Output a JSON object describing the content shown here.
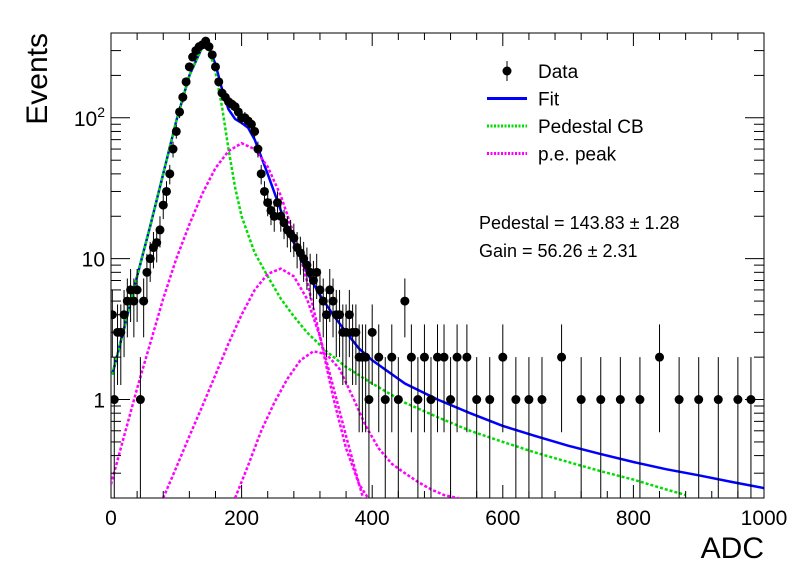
{
  "chart_data": {
    "type": "scatter",
    "xlabel": "ADC",
    "ylabel": "Events",
    "xlim": [
      0,
      1000
    ],
    "ylim": [
      0.2,
      400
    ],
    "yscale": "log",
    "x_ticks": [
      0,
      200,
      400,
      600,
      800,
      1000
    ],
    "x_tick_labels": [
      "0",
      "200",
      "400",
      "600",
      "800",
      "1000"
    ],
    "y_ticks": [
      1,
      10,
      100
    ],
    "y_tick_labels": [
      "1",
      "10",
      "10^2"
    ],
    "legend": {
      "position": "top-right",
      "entries": [
        {
          "label": "Data",
          "style": "marker",
          "color": "#000000"
        },
        {
          "label": "Fit",
          "style": "solid",
          "color": "#0000ff"
        },
        {
          "label": "Pedestal CB",
          "style": "dotted",
          "color": "#00dd00"
        },
        {
          "label": "p.e. peak",
          "style": "dotted",
          "color": "#ff00ff"
        }
      ]
    },
    "annotations": [
      "Pedestal = 143.83 ± 1.28",
      "Gain = 56.26 ± 2.31"
    ],
    "series": [
      {
        "name": "Data",
        "kind": "points_with_errors",
        "color": "#000000",
        "x": [
          2,
          5,
          10,
          15,
          20,
          25,
          30,
          35,
          40,
          45,
          50,
          55,
          60,
          65,
          70,
          75,
          80,
          85,
          90,
          95,
          100,
          105,
          110,
          115,
          120,
          125,
          130,
          135,
          140,
          145,
          150,
          155,
          160,
          165,
          170,
          175,
          180,
          185,
          190,
          195,
          200,
          205,
          210,
          215,
          220,
          225,
          230,
          235,
          240,
          245,
          250,
          255,
          260,
          265,
          270,
          275,
          280,
          285,
          290,
          295,
          300,
          305,
          310,
          315,
          320,
          325,
          330,
          335,
          340,
          345,
          350,
          355,
          360,
          365,
          370,
          375,
          380,
          385,
          390,
          395,
          400,
          410,
          420,
          430,
          440,
          450,
          460,
          470,
          480,
          490,
          500,
          510,
          520,
          530,
          545,
          560,
          580,
          600,
          620,
          640,
          660,
          690,
          720,
          750,
          780,
          810,
          840,
          870,
          900,
          930,
          960,
          980
        ],
        "y": [
          4,
          1,
          3,
          3,
          4,
          5,
          6,
          5,
          6,
          1,
          5,
          8,
          10,
          12,
          13,
          16,
          24,
          30,
          40,
          60,
          80,
          110,
          140,
          180,
          230,
          270,
          300,
          320,
          330,
          350,
          320,
          280,
          230,
          180,
          150,
          140,
          130,
          125,
          120,
          110,
          100,
          100,
          95,
          90,
          80,
          60,
          40,
          30,
          25,
          22,
          20,
          25,
          20,
          18,
          16,
          15,
          14,
          12,
          11,
          10,
          9,
          8,
          7,
          8,
          6,
          5,
          4,
          6,
          5,
          4,
          4,
          3,
          3,
          4,
          3,
          3,
          2,
          2,
          2,
          1,
          3,
          2,
          1,
          2,
          1,
          5,
          2,
          1,
          2,
          1,
          2,
          2,
          1,
          2,
          2,
          1,
          1,
          2,
          1,
          1,
          1,
          2,
          1,
          1,
          1,
          1,
          2,
          1,
          1,
          1,
          1,
          1
        ]
      },
      {
        "name": "Fit",
        "kind": "line",
        "color": "#0000ff",
        "x": [
          2,
          20,
          40,
          60,
          80,
          100,
          120,
          140,
          145,
          150,
          160,
          170,
          180,
          190,
          200,
          210,
          220,
          240,
          260,
          280,
          300,
          320,
          340,
          360,
          380,
          400,
          450,
          500,
          550,
          600,
          650,
          700,
          750,
          800,
          850,
          900,
          950,
          1000
        ],
        "y": [
          1.5,
          3.2,
          7.5,
          17,
          40,
          95,
          200,
          320,
          330,
          315,
          240,
          160,
          115,
          98,
          92,
          85,
          70,
          40,
          22,
          13,
          8,
          5.5,
          4,
          3,
          2.3,
          1.9,
          1.3,
          1,
          0.8,
          0.65,
          0.55,
          0.47,
          0.41,
          0.36,
          0.32,
          0.29,
          0.26,
          0.235
        ]
      },
      {
        "name": "Pedestal CB",
        "kind": "line",
        "color": "#00dd00",
        "x": [
          2,
          20,
          40,
          60,
          80,
          100,
          120,
          140,
          145,
          150,
          160,
          170,
          180,
          190,
          200,
          220,
          240,
          260,
          280,
          300,
          330,
          360,
          400,
          450,
          500,
          550,
          600,
          650,
          700,
          750,
          800,
          850,
          880
        ],
        "y": [
          1.5,
          3.2,
          7.5,
          17,
          40,
          95,
          200,
          320,
          330,
          310,
          210,
          120,
          60,
          32,
          20,
          11,
          7.5,
          5.2,
          3.9,
          3,
          2.2,
          1.7,
          1.3,
          0.95,
          0.75,
          0.6,
          0.5,
          0.42,
          0.36,
          0.31,
          0.27,
          0.23,
          0.21
        ]
      },
      {
        "name": "p.e. peak",
        "kind": "line",
        "color": "#ff00ff",
        "x": [
          0,
          20,
          40,
          60,
          80,
          100,
          120,
          140,
          160,
          180,
          200,
          220,
          240,
          260,
          280,
          300,
          320,
          340,
          360,
          380,
          400
        ],
        "y": [
          0.25,
          0.55,
          1.2,
          2.5,
          5.2,
          10,
          17.5,
          29,
          44,
          58,
          66,
          60,
          45,
          28,
          15,
          7,
          2.8,
          1.05,
          0.45,
          0.25,
          0.18
        ]
      },
      {
        "name": "p.e. peak",
        "kind": "line",
        "color": "#ff00ff",
        "x": [
          80,
          100,
          120,
          140,
          160,
          180,
          200,
          220,
          240,
          260,
          280,
          300,
          320,
          340,
          360,
          380,
          400
        ],
        "y": [
          0.2,
          0.33,
          0.55,
          0.9,
          1.5,
          2.5,
          4,
          6,
          7.8,
          8.5,
          7.5,
          5.2,
          2.8,
          1.25,
          0.55,
          0.25,
          0.12
        ]
      },
      {
        "name": "p.e. peak",
        "kind": "line",
        "color": "#ff00ff",
        "x": [
          190,
          210,
          230,
          250,
          270,
          290,
          310,
          330,
          350,
          370,
          390,
          410,
          430,
          450,
          470,
          490,
          510,
          530,
          550
        ],
        "y": [
          0.2,
          0.34,
          0.6,
          0.95,
          1.4,
          1.9,
          2.2,
          2.1,
          1.65,
          1.05,
          0.65,
          0.45,
          0.35,
          0.3,
          0.26,
          0.23,
          0.21,
          0.2,
          0.19
        ]
      }
    ]
  }
}
